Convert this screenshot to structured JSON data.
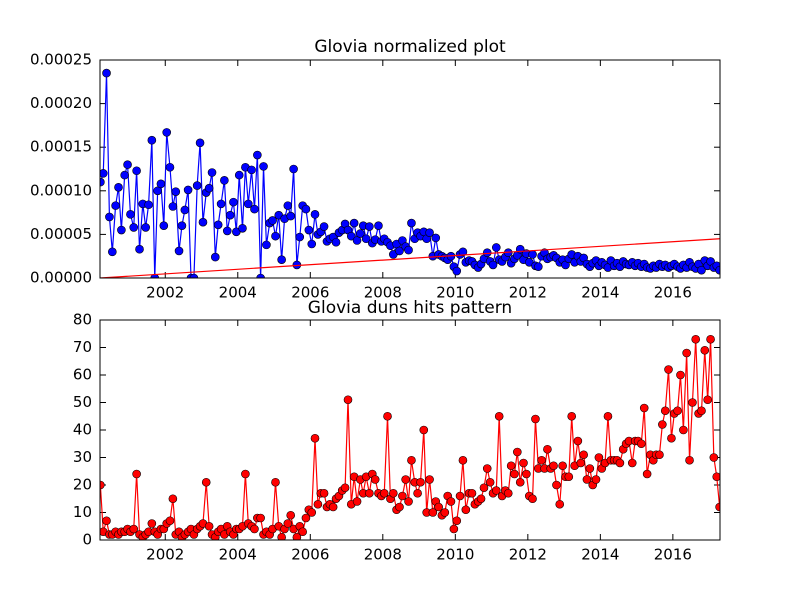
{
  "chart_data": [
    {
      "type": "line",
      "title": "Glovia normalized plot",
      "x": [
        2000.21,
        2000.29,
        2000.38,
        2000.46,
        2000.54,
        2000.63,
        2000.71,
        2000.79,
        2000.88,
        2000.96,
        2001.04,
        2001.13,
        2001.21,
        2001.29,
        2001.38,
        2001.46,
        2001.54,
        2001.63,
        2001.71,
        2001.79,
        2001.88,
        2001.96,
        2002.04,
        2002.13,
        2002.21,
        2002.29,
        2002.38,
        2002.46,
        2002.54,
        2002.63,
        2002.71,
        2002.79,
        2002.88,
        2002.96,
        2003.04,
        2003.13,
        2003.21,
        2003.29,
        2003.38,
        2003.46,
        2003.54,
        2003.63,
        2003.71,
        2003.79,
        2003.88,
        2003.96,
        2004.04,
        2004.13,
        2004.21,
        2004.29,
        2004.38,
        2004.46,
        2004.54,
        2004.63,
        2004.71,
        2004.79,
        2004.88,
        2004.96,
        2005.04,
        2005.13,
        2005.21,
        2005.29,
        2005.38,
        2005.46,
        2005.54,
        2005.63,
        2005.71,
        2005.79,
        2005.88,
        2005.96,
        2006.04,
        2006.13,
        2006.21,
        2006.29,
        2006.38,
        2006.46,
        2006.54,
        2006.63,
        2006.71,
        2006.79,
        2006.88,
        2006.96,
        2007.04,
        2007.13,
        2007.21,
        2007.29,
        2007.38,
        2007.46,
        2007.54,
        2007.63,
        2007.71,
        2007.79,
        2007.88,
        2007.96,
        2008.04,
        2008.13,
        2008.21,
        2008.29,
        2008.38,
        2008.46,
        2008.54,
        2008.63,
        2008.71,
        2008.79,
        2008.88,
        2008.96,
        2009.04,
        2009.13,
        2009.21,
        2009.29,
        2009.38,
        2009.46,
        2009.54,
        2009.63,
        2009.71,
        2009.79,
        2009.88,
        2009.96,
        2010.04,
        2010.13,
        2010.21,
        2010.29,
        2010.38,
        2010.46,
        2010.54,
        2010.63,
        2010.71,
        2010.79,
        2010.88,
        2010.96,
        2011.04,
        2011.13,
        2011.21,
        2011.29,
        2011.38,
        2011.46,
        2011.54,
        2011.63,
        2011.71,
        2011.79,
        2011.88,
        2011.96,
        2012.04,
        2012.13,
        2012.21,
        2012.29,
        2012.38,
        2012.46,
        2012.54,
        2012.63,
        2012.71,
        2012.79,
        2012.88,
        2012.96,
        2013.04,
        2013.13,
        2013.21,
        2013.29,
        2013.38,
        2013.46,
        2013.54,
        2013.63,
        2013.71,
        2013.79,
        2013.88,
        2013.96,
        2014.04,
        2014.13,
        2014.21,
        2014.29,
        2014.38,
        2014.46,
        2014.54,
        2014.63,
        2014.71,
        2014.79,
        2014.88,
        2014.96,
        2015.04,
        2015.13,
        2015.21,
        2015.29,
        2015.38,
        2015.46,
        2015.54,
        2015.63,
        2015.71,
        2015.79,
        2015.88,
        2015.96,
        2016.04,
        2016.13,
        2016.21,
        2016.29,
        2016.38,
        2016.46,
        2016.54,
        2016.63,
        2016.71,
        2016.79,
        2016.88,
        2016.96,
        2017.04,
        2017.13,
        2017.21,
        2017.29
      ],
      "series": [
        {
          "color": "#0000ff",
          "values": [
            0.00011,
            0.00012,
            0.000235,
            7e-05,
            3e-05,
            8.3e-05,
            0.000104,
            5.5e-05,
            0.000118,
            0.00013,
            7.3e-05,
            5.8e-05,
            0.000123,
            3.3e-05,
            8.5e-05,
            5.8e-05,
            8.4e-05,
            0.000158,
            0.0,
            0.0001,
            0.000108,
            6e-05,
            0.000167,
            0.000127,
            8.2e-05,
            9.9e-05,
            3.1e-05,
            6e-05,
            7.8e-05,
            0.000101,
            0.0,
            0.0,
            0.000106,
            0.000155,
            6.4e-05,
            9.8e-05,
            0.000103,
            0.000121,
            2.4e-05,
            6.1e-05,
            8.5e-05,
            0.000112,
            5.4e-05,
            7.2e-05,
            8.7e-05,
            5.3e-05,
            0.000118,
            5.7e-05,
            0.000127,
            8.5e-05,
            0.000124,
            7.9e-05,
            0.000141,
            0.0,
            0.000128,
            3.8e-05,
            6.3e-05,
            6.6e-05,
            4.8e-05,
            7.2e-05,
            2.1e-05,
            6.8e-05,
            8.3e-05,
            7.1e-05,
            0.000125,
            1.5e-05,
            4.7e-05,
            8.3e-05,
            7.9e-05,
            5.5e-05,
            3.9e-05,
            7.3e-05,
            5e-05,
            5.3e-05,
            5.9e-05,
            4.2e-05,
            4.5e-05,
            4.7e-05,
            4.1e-05,
            5.2e-05,
            5.5e-05,
            6.2e-05,
            5.5e-05,
            4.8e-05,
            6.3e-05,
            4.3e-05,
            5.1e-05,
            6e-05,
            4.5e-05,
            5.9e-05,
            4e-05,
            4.4e-05,
            6e-05,
            4.2e-05,
            4.5e-05,
            4.1e-05,
            3.7e-05,
            2.7e-05,
            3.9e-05,
            3.1e-05,
            4.3e-05,
            3.6e-05,
            3.2e-05,
            6.3e-05,
            4.5e-05,
            5.2e-05,
            4.8e-05,
            5.3e-05,
            4.5e-05,
            5.2e-05,
            2.5e-05,
            4.6e-05,
            2.7e-05,
            2.5e-05,
            2.3e-05,
            2.1e-05,
            2.5e-05,
            1.3e-05,
            8e-06,
            2.7e-05,
            3e-05,
            1.8e-05,
            2e-05,
            1.9e-05,
            1.5e-05,
            1.2e-05,
            1.6e-05,
            2.2e-05,
            2.9e-05,
            1.9e-05,
            1.5e-05,
            3.5e-05,
            2.1e-05,
            1.9e-05,
            2.4e-05,
            2.9e-05,
            1.7e-05,
            2.2e-05,
            2.6e-05,
            3.3e-05,
            2.1e-05,
            2.8e-05,
            1.8e-05,
            2.7e-05,
            1.4e-05,
            1.3e-05,
            2.5e-05,
            2.9e-05,
            2.2e-05,
            2.4e-05,
            2.6e-05,
            2.3e-05,
            1.8e-05,
            2.1e-05,
            1.5e-05,
            2.2e-05,
            2.7e-05,
            1.8e-05,
            2.5e-05,
            1.9e-05,
            2.3e-05,
            1.6e-05,
            1.3e-05,
            1.7e-05,
            2e-05,
            1.4e-05,
            1.8e-05,
            1.5e-05,
            1.2e-05,
            2e-05,
            1.4e-05,
            1.7e-05,
            1.3e-05,
            1.9e-05,
            1.6e-05,
            1.5e-05,
            1.8e-05,
            1.4e-05,
            1.7e-05,
            1.3e-05,
            1.6e-05,
            1.2e-05,
            1.1e-05,
            1.4e-05,
            1.2e-05,
            1.6e-05,
            1.3e-05,
            1.5e-05,
            1.2e-05,
            1.4e-05,
            1.6e-05,
            1.3e-05,
            1.1e-05,
            1.5e-05,
            1.2e-05,
            1.8e-05,
            1.3e-05,
            1.1e-05,
            1.6e-05,
            9e-06,
            2e-05,
            1.4e-05,
            1.9e-05,
            1.2e-05,
            1.4e-05,
            9e-06
          ]
        }
      ],
      "trend": {
        "color": "#ff0000",
        "x": [
          2000.21,
          2017.29
        ],
        "values": [
          0.0,
          4.5e-05
        ]
      },
      "xlim": [
        2000.2,
        2017.3
      ],
      "xticks": [
        2002,
        2004,
        2006,
        2008,
        2010,
        2012,
        2014,
        2016
      ],
      "ylim": [
        0,
        0.00025
      ],
      "yticks": [
        {
          "value": 0,
          "label": "0.00000"
        },
        {
          "value": 5e-05,
          "label": "0.00005"
        },
        {
          "value": 0.0001,
          "label": "0.00010"
        },
        {
          "value": 0.00015,
          "label": "0.00015"
        },
        {
          "value": 0.0002,
          "label": "0.00020"
        },
        {
          "value": 0.00025,
          "label": "0.00025"
        }
      ]
    },
    {
      "type": "line",
      "title": "Glovia duns hits pattern",
      "x": [
        2000.21,
        2000.29,
        2000.38,
        2000.46,
        2000.54,
        2000.63,
        2000.71,
        2000.79,
        2000.88,
        2000.96,
        2001.04,
        2001.13,
        2001.21,
        2001.29,
        2001.38,
        2001.46,
        2001.54,
        2001.63,
        2001.71,
        2001.79,
        2001.88,
        2001.96,
        2002.04,
        2002.13,
        2002.21,
        2002.29,
        2002.38,
        2002.46,
        2002.54,
        2002.63,
        2002.71,
        2002.79,
        2002.88,
        2002.96,
        2003.04,
        2003.13,
        2003.21,
        2003.29,
        2003.38,
        2003.46,
        2003.54,
        2003.63,
        2003.71,
        2003.79,
        2003.88,
        2003.96,
        2004.04,
        2004.13,
        2004.21,
        2004.29,
        2004.38,
        2004.46,
        2004.54,
        2004.63,
        2004.71,
        2004.79,
        2004.88,
        2004.96,
        2005.04,
        2005.13,
        2005.21,
        2005.29,
        2005.38,
        2005.46,
        2005.54,
        2005.63,
        2005.71,
        2005.79,
        2005.88,
        2005.96,
        2006.04,
        2006.13,
        2006.21,
        2006.29,
        2006.38,
        2006.46,
        2006.54,
        2006.63,
        2006.71,
        2006.79,
        2006.88,
        2006.96,
        2007.04,
        2007.13,
        2007.21,
        2007.29,
        2007.38,
        2007.46,
        2007.54,
        2007.63,
        2007.71,
        2007.79,
        2007.88,
        2007.96,
        2008.04,
        2008.13,
        2008.21,
        2008.29,
        2008.38,
        2008.46,
        2008.54,
        2008.63,
        2008.71,
        2008.79,
        2008.88,
        2008.96,
        2009.04,
        2009.13,
        2009.21,
        2009.29,
        2009.38,
        2009.46,
        2009.54,
        2009.63,
        2009.71,
        2009.79,
        2009.88,
        2009.96,
        2010.04,
        2010.13,
        2010.21,
        2010.29,
        2010.38,
        2010.46,
        2010.54,
        2010.63,
        2010.71,
        2010.79,
        2010.88,
        2010.96,
        2011.04,
        2011.13,
        2011.21,
        2011.29,
        2011.38,
        2011.46,
        2011.54,
        2011.63,
        2011.71,
        2011.79,
        2011.88,
        2011.96,
        2012.04,
        2012.13,
        2012.21,
        2012.29,
        2012.38,
        2012.46,
        2012.54,
        2012.63,
        2012.71,
        2012.79,
        2012.88,
        2012.96,
        2013.04,
        2013.13,
        2013.21,
        2013.29,
        2013.38,
        2013.46,
        2013.54,
        2013.63,
        2013.71,
        2013.79,
        2013.88,
        2013.96,
        2014.04,
        2014.13,
        2014.21,
        2014.29,
        2014.38,
        2014.46,
        2014.54,
        2014.63,
        2014.71,
        2014.79,
        2014.88,
        2014.96,
        2015.04,
        2015.13,
        2015.21,
        2015.29,
        2015.38,
        2015.46,
        2015.54,
        2015.63,
        2015.71,
        2015.79,
        2015.88,
        2015.96,
        2016.04,
        2016.13,
        2016.21,
        2016.29,
        2016.38,
        2016.46,
        2016.54,
        2016.63,
        2016.71,
        2016.79,
        2016.88,
        2016.96,
        2017.04,
        2017.13,
        2017.21,
        2017.29
      ],
      "series": [
        {
          "color": "#ff0000",
          "values": [
            20,
            3,
            7,
            2,
            2,
            3,
            2,
            3,
            3,
            4,
            3,
            4,
            24,
            2,
            1,
            2,
            3,
            6,
            3,
            2,
            4,
            4,
            6,
            7,
            15,
            2,
            3,
            1,
            2,
            3,
            4,
            2,
            4,
            5,
            6,
            21,
            5,
            2,
            1,
            3,
            4,
            2,
            5,
            3,
            2,
            4,
            4,
            5,
            24,
            6,
            5,
            4,
            8,
            8,
            2,
            3,
            2,
            4,
            21,
            5,
            1,
            4,
            6,
            9,
            4,
            1,
            5,
            3,
            8,
            11,
            10,
            37,
            13,
            17,
            17,
            12,
            13,
            12,
            15,
            16,
            18,
            19,
            51,
            13,
            23,
            14,
            22,
            17,
            23,
            17,
            24,
            22,
            17,
            16,
            17,
            45,
            15,
            17,
            11,
            12,
            16,
            22,
            14,
            29,
            21,
            17,
            21,
            40,
            10,
            22,
            10,
            14,
            12,
            9,
            10,
            16,
            14,
            4,
            7,
            16,
            29,
            11,
            17,
            17,
            13,
            14,
            15,
            19,
            26,
            21,
            17,
            18,
            45,
            16,
            18,
            17,
            27,
            24,
            32,
            21,
            28,
            24,
            16,
            15,
            44,
            26,
            29,
            26,
            33,
            26,
            27,
            20,
            13,
            27,
            23,
            23,
            45,
            27,
            36,
            28,
            31,
            22,
            26,
            20,
            22,
            30,
            26,
            28,
            45,
            29,
            29,
            29,
            28,
            33,
            35,
            36,
            28,
            36,
            36,
            35,
            48,
            24,
            31,
            29,
            31,
            31,
            42,
            47,
            62,
            37,
            46,
            47,
            60,
            40,
            68,
            29,
            50,
            73,
            46,
            47,
            69,
            51,
            73,
            30,
            23,
            12
          ]
        }
      ],
      "xlim": [
        2000.2,
        2017.3
      ],
      "xticks": [
        2002,
        2004,
        2006,
        2008,
        2010,
        2012,
        2014,
        2016
      ],
      "ylim": [
        0,
        80
      ],
      "yticks": [
        0,
        10,
        20,
        30,
        40,
        50,
        60,
        70,
        80
      ]
    }
  ]
}
